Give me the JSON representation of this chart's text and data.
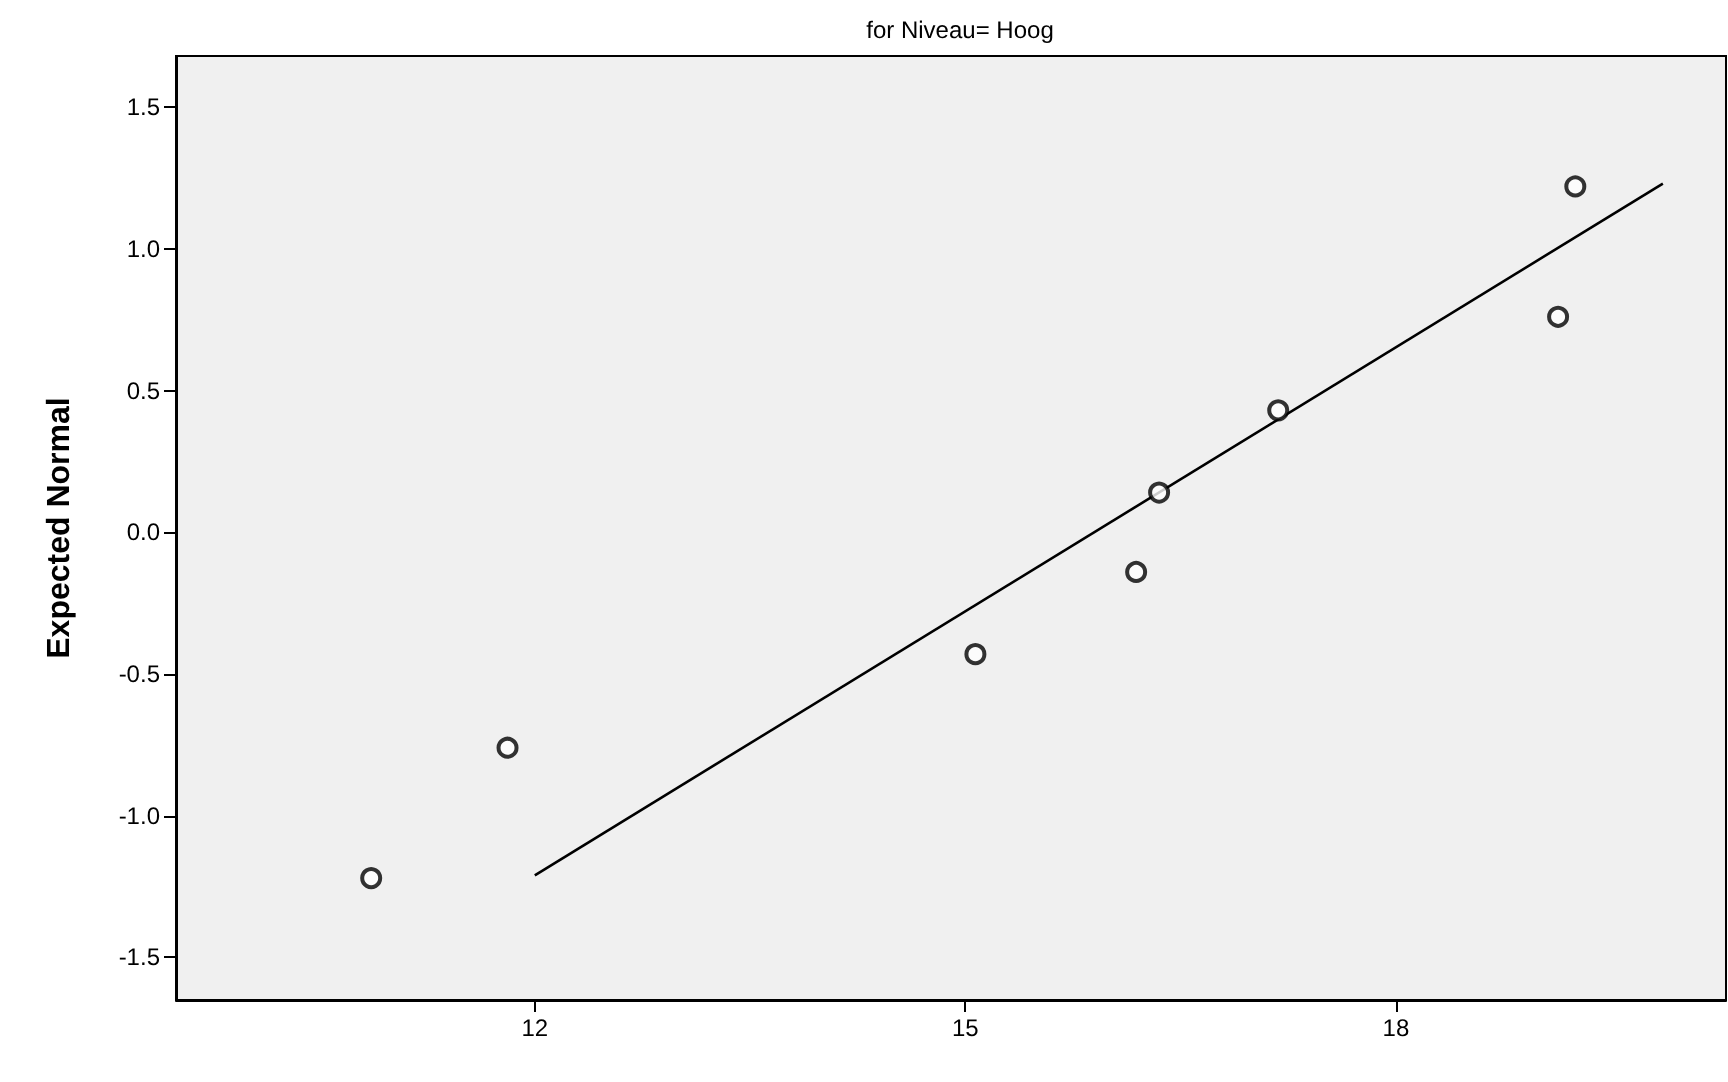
{
  "chart_data": {
    "type": "scatter",
    "title": "for Niveau= Hoog",
    "ylabel": "Expected Normal",
    "series": [
      {
        "color": "#000000",
        "marker": "circle",
        "x": [
          10.86,
          11.81,
          15.07,
          16.19,
          16.35,
          17.18,
          19.13,
          19.25
        ],
        "values": [
          -1.22,
          -0.76,
          -0.43,
          -0.14,
          0.14,
          0.43,
          0.76,
          1.22
        ]
      },
      {
        "type": "line",
        "color": "#000000",
        "marker": "none",
        "x": [
          12.0,
          19.86
        ],
        "values": [
          -1.21,
          1.23
        ]
      }
    ],
    "xlim": [
      9.5,
      20.3
    ],
    "ylim": [
      -1.65,
      1.68
    ],
    "xticks": [
      12,
      15,
      18
    ],
    "yticks": [
      {
        "value": -1.5,
        "label": "-1.5"
      },
      {
        "value": -1.0,
        "label": "-1.0"
      },
      {
        "value": -0.5,
        "label": "-0.5"
      },
      {
        "value": 0.0,
        "label": "0.0"
      },
      {
        "value": 0.5,
        "label": "0.5"
      },
      {
        "value": 1.0,
        "label": "1.0"
      },
      {
        "value": 1.5,
        "label": "1.5"
      }
    ],
    "grid": false
  }
}
